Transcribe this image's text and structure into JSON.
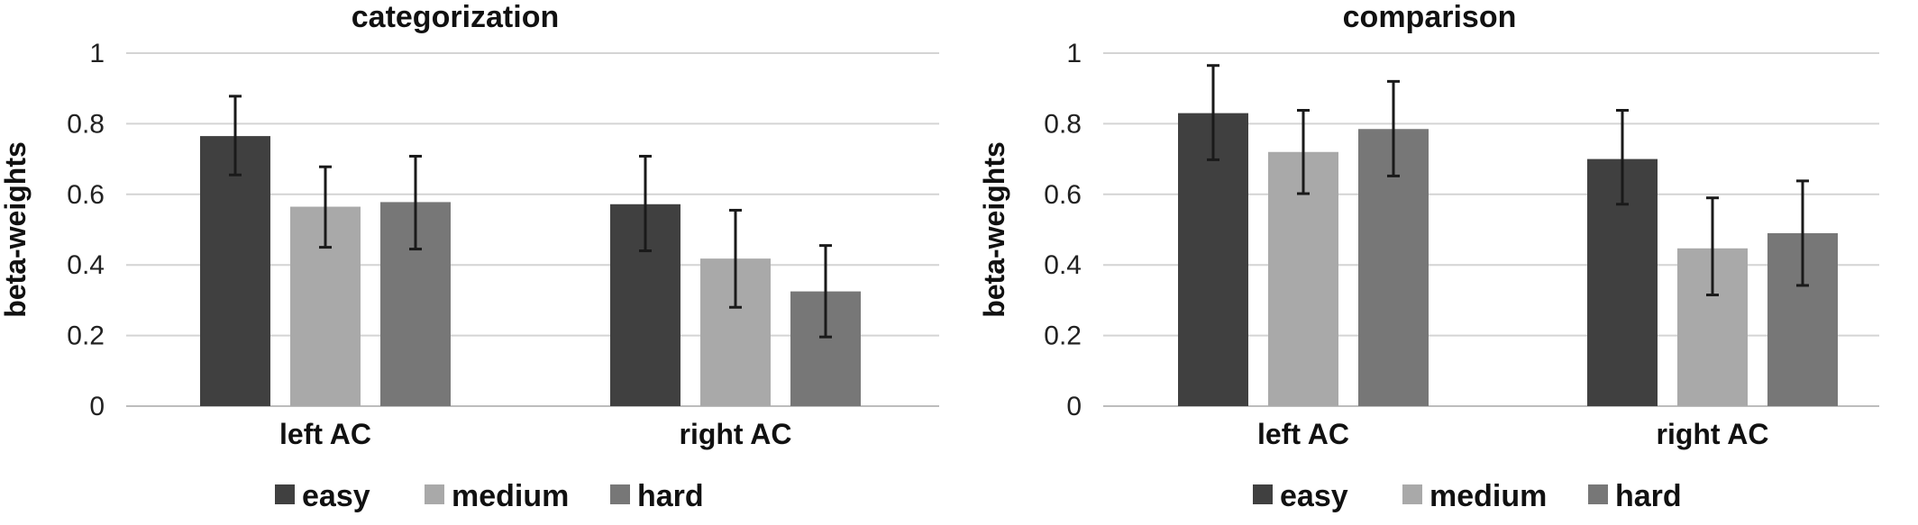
{
  "chart_data": [
    {
      "type": "bar",
      "title": "categorization",
      "ylabel": "beta-weights",
      "xlabel": "",
      "categories": [
        "left AC",
        "right AC"
      ],
      "ylim": [
        0,
        1
      ],
      "yticks": [
        "0",
        "0.2",
        "0.4",
        "0.6",
        "0.8",
        "1"
      ],
      "grid": true,
      "legend": "bottom",
      "series": [
        {
          "name": "easy",
          "color": "#404040",
          "values": [
            0.765,
            0.572
          ],
          "err_low": [
            0.655,
            0.44
          ],
          "err_high": [
            0.878,
            0.708
          ]
        },
        {
          "name": "medium",
          "color": "#a9a9a9",
          "values": [
            0.565,
            0.418
          ],
          "err_low": [
            0.45,
            0.28
          ],
          "err_high": [
            0.678,
            0.555
          ]
        },
        {
          "name": "hard",
          "color": "#777777",
          "values": [
            0.578,
            0.325
          ],
          "err_low": [
            0.445,
            0.196
          ],
          "err_high": [
            0.708,
            0.455
          ]
        }
      ]
    },
    {
      "type": "bar",
      "title": "comparison",
      "ylabel": "beta-weights",
      "xlabel": "",
      "categories": [
        "left AC",
        "right AC"
      ],
      "ylim": [
        0,
        1
      ],
      "yticks": [
        "0",
        "0.2",
        "0.4",
        "0.6",
        "0.8",
        "1"
      ],
      "grid": true,
      "legend": "bottom",
      "series": [
        {
          "name": "easy",
          "color": "#404040",
          "values": [
            0.83,
            0.7
          ],
          "err_low": [
            0.698,
            0.572
          ],
          "err_high": [
            0.965,
            0.838
          ]
        },
        {
          "name": "medium",
          "color": "#a9a9a9",
          "values": [
            0.72,
            0.447
          ],
          "err_low": [
            0.602,
            0.315
          ],
          "err_high": [
            0.838,
            0.59
          ]
        },
        {
          "name": "hard",
          "color": "#777777",
          "values": [
            0.785,
            0.49
          ],
          "err_low": [
            0.652,
            0.342
          ],
          "err_high": [
            0.92,
            0.638
          ]
        }
      ]
    }
  ]
}
